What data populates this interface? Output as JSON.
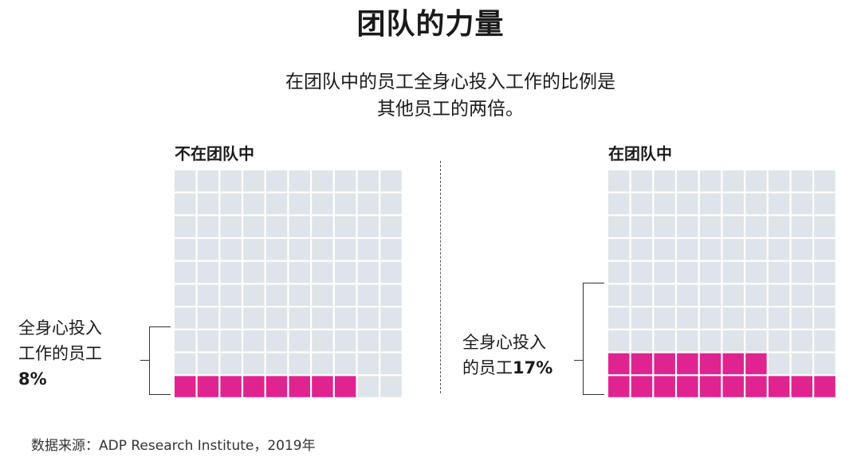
{
  "title": "团队的力量",
  "subtitle": {
    "line1": "在团队中的员工全身心投入工作的比例是",
    "line2": "其他员工的两倍。"
  },
  "colors": {
    "filled": "#e0248f",
    "empty": "#dfe4ea",
    "text": "#1a1a1a"
  },
  "chart_data": [
    {
      "type": "waffle",
      "panel_label": "不在团队中",
      "total_cells": 100,
      "grid": {
        "rows": 10,
        "cols": 10
      },
      "value": 8,
      "unit": "%",
      "annotation": {
        "line1": "全身心投入",
        "line2": "工作的员工",
        "value_text": "8%"
      }
    },
    {
      "type": "waffle",
      "panel_label": "在团队中",
      "total_cells": 100,
      "grid": {
        "rows": 10,
        "cols": 10
      },
      "value": 17,
      "unit": "%",
      "annotation": {
        "line1": "全身心投入",
        "line2_prefix": "的员工",
        "value_text": "17%"
      }
    }
  ],
  "source": "数据来源：ADP Research Institute，2019年"
}
